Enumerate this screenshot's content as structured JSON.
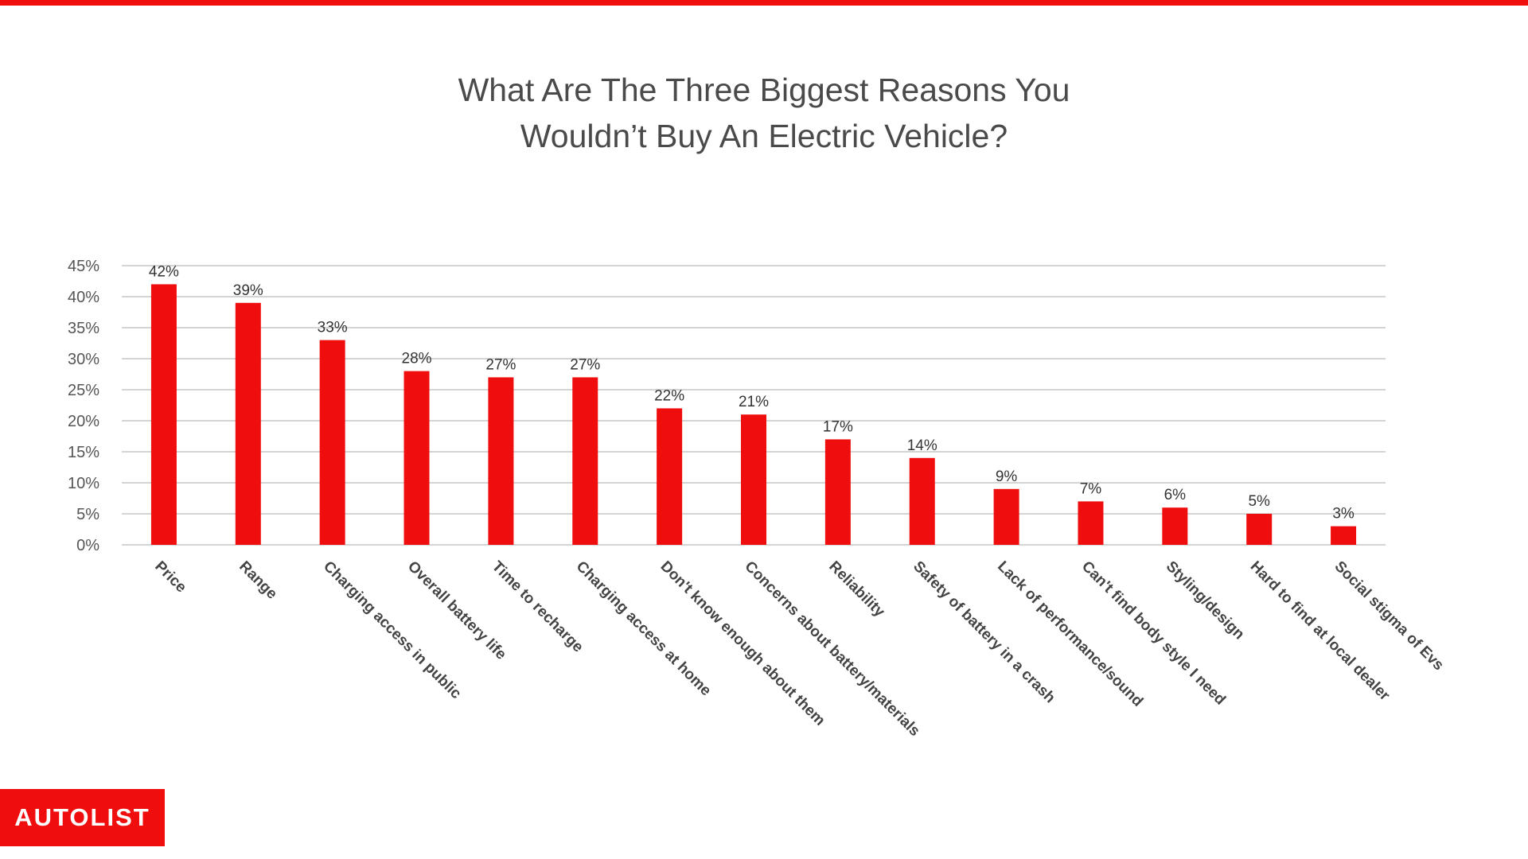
{
  "brand_color": "#f00d0d",
  "logo_text": "AUTOLIST",
  "chart_data": {
    "type": "bar",
    "title": "What Are The Three Biggest Reasons You Wouldn’t Buy An Electric Vehicle?",
    "title_lines": [
      "What Are The Three Biggest Reasons You",
      "Wouldn’t Buy An Electric Vehicle?"
    ],
    "xlabel": "",
    "ylabel": "",
    "ylim": [
      0,
      45
    ],
    "yticks": [
      "0%",
      "5%",
      "10%",
      "15%",
      "20%",
      "25%",
      "30%",
      "35%",
      "40%",
      "45%"
    ],
    "grid": true,
    "legend": "none",
    "bar_color": "#f00d0d",
    "categories": [
      "Price",
      "Range",
      "Charging access in public",
      "Overall battery life",
      "Time to recharge",
      "Charging access at home",
      "Don't know enough about them",
      "Concerns about battery/materials",
      "Reliability",
      "Safety of battery in a crash",
      "Lack of performance/sound",
      "Can't find body style I need",
      "Styling/design",
      "Hard to find at local dealer",
      "Social stigma of Evs"
    ],
    "values": [
      42,
      39,
      33,
      28,
      27,
      27,
      22,
      21,
      17,
      14,
      9,
      7,
      6,
      5,
      3
    ],
    "data_labels": [
      "42%",
      "39%",
      "33%",
      "28%",
      "27%",
      "27%",
      "22%",
      "21%",
      "17%",
      "14%",
      "9%",
      "7%",
      "6%",
      "5%",
      "3%"
    ]
  }
}
